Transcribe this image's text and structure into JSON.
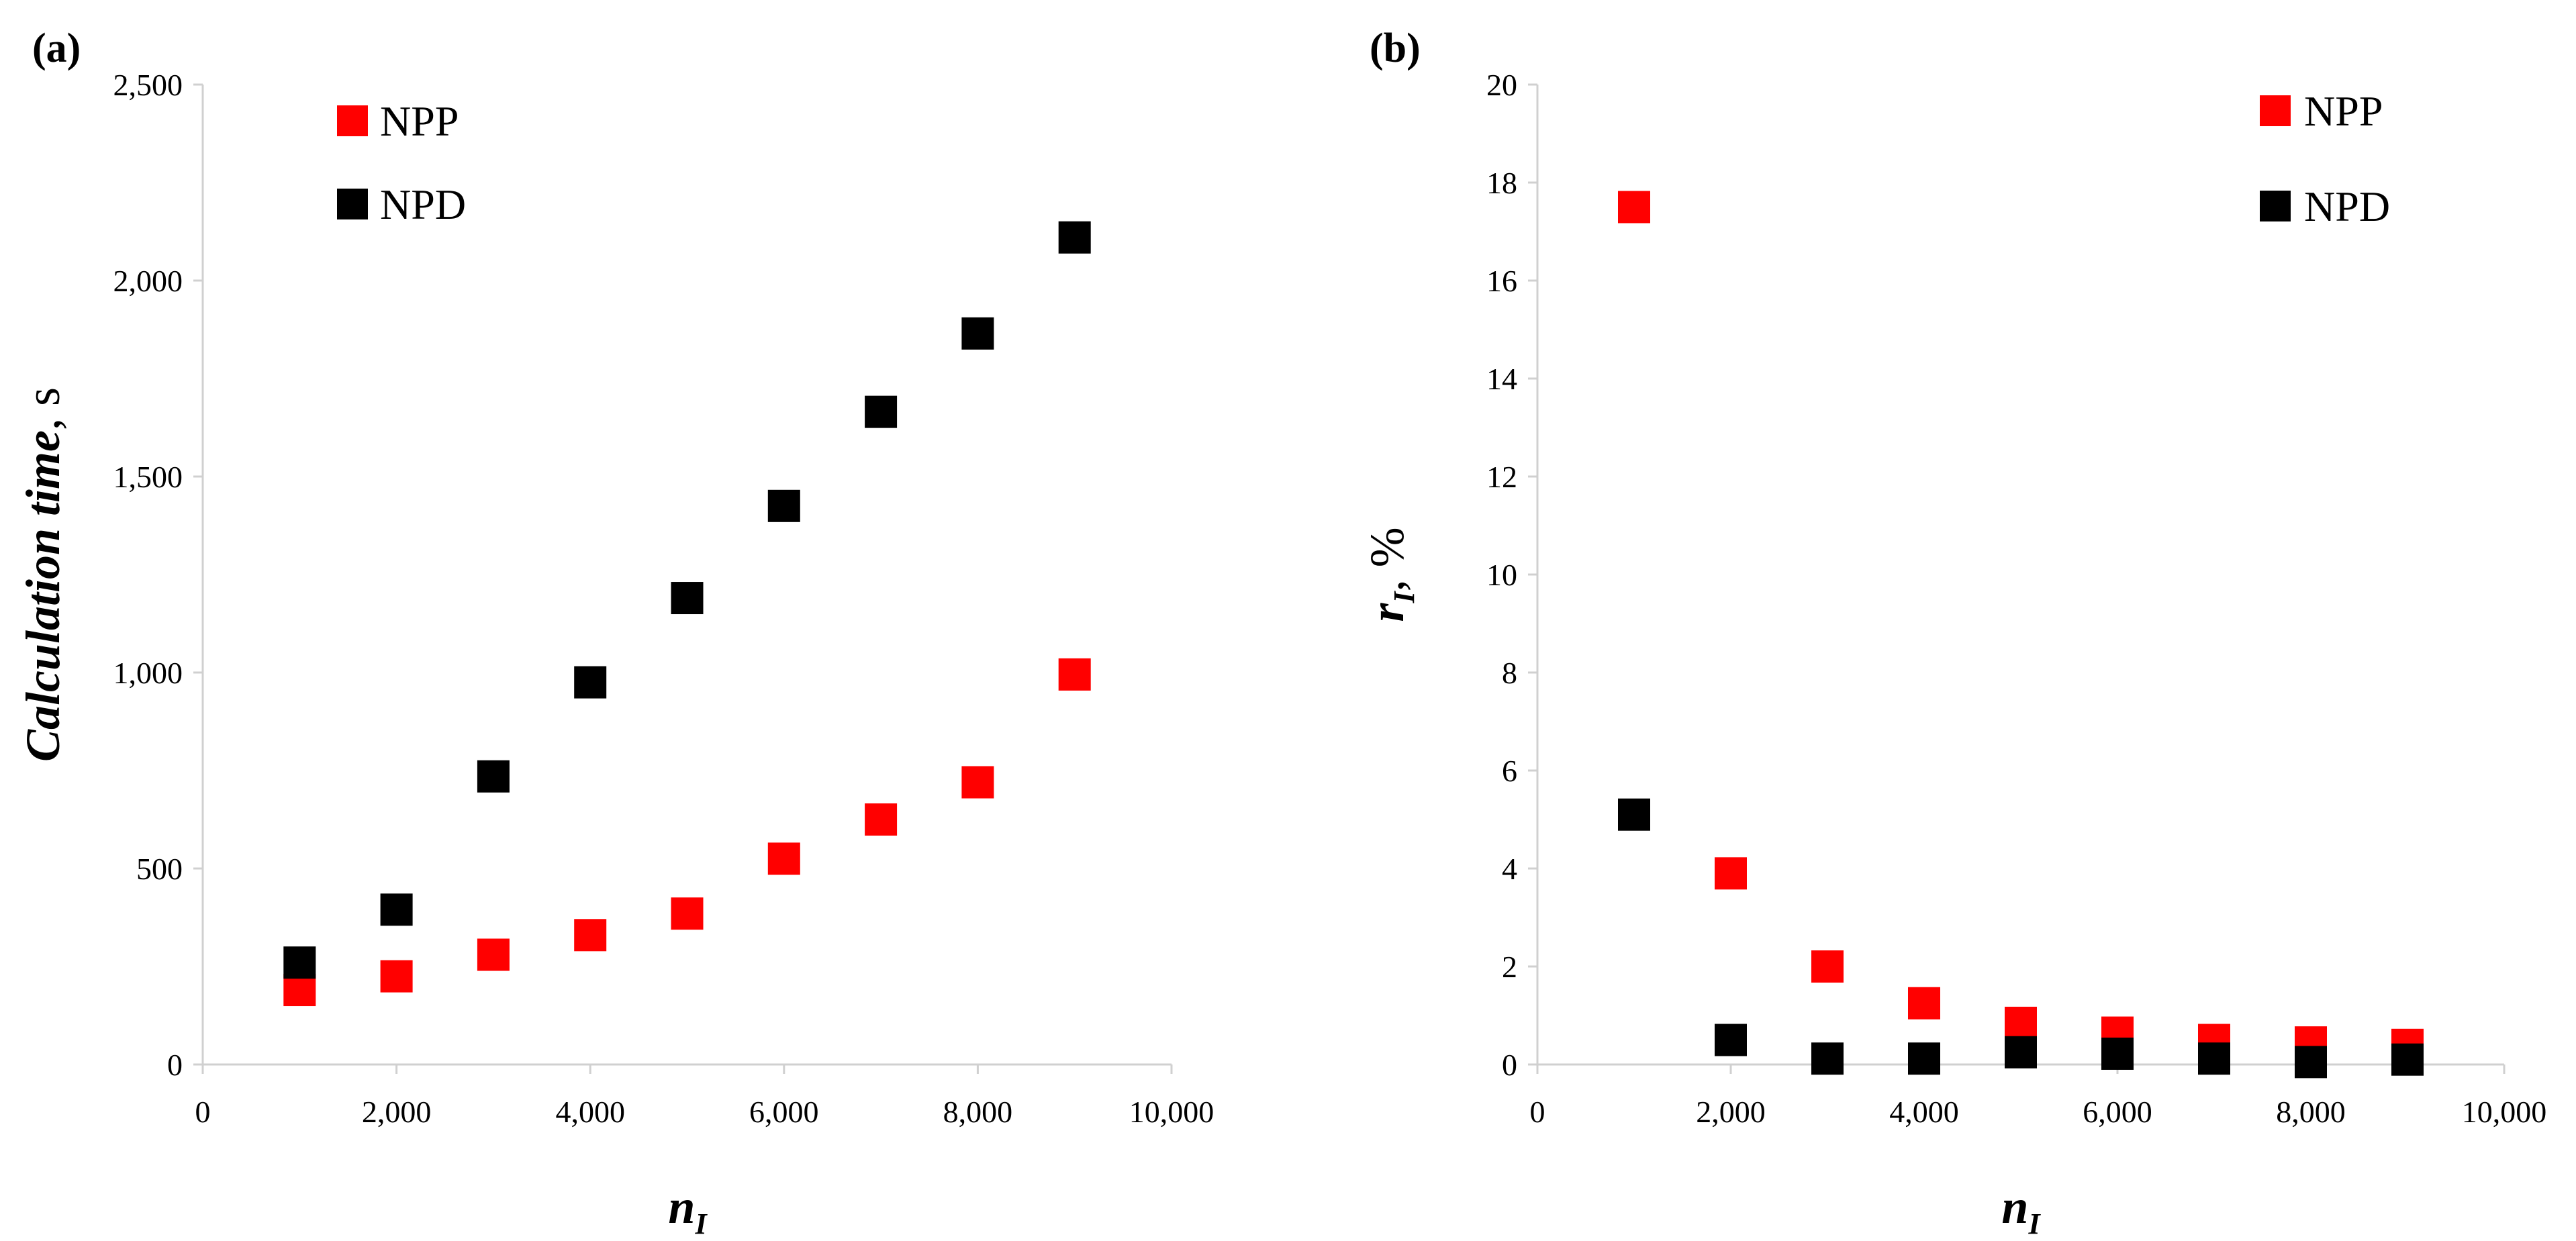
{
  "chart_data": [
    {
      "type": "scatter",
      "panel": "(a)",
      "xlabel_main": "n",
      "xlabel_sub": "I",
      "ylabel_main": "Calculation time",
      "ylabel_unit": ", s",
      "xlim": [
        0,
        10000
      ],
      "ylim": [
        0,
        2500
      ],
      "xticks": [
        0,
        2000,
        4000,
        6000,
        8000,
        10000
      ],
      "xtick_labels": [
        "0",
        "2,000",
        "4,000",
        "6,000",
        "8,000",
        "10,000"
      ],
      "yticks": [
        0,
        500,
        1000,
        1500,
        2000,
        2500
      ],
      "ytick_labels": [
        "0",
        "500",
        "1,000",
        "1,500",
        "2,000",
        "2,500"
      ],
      "grid": false,
      "legend": "top-left",
      "series": [
        {
          "name": "NPP",
          "color": "#ff0000",
          "x": [
            1000,
            2000,
            3000,
            4000,
            5000,
            6000,
            7000,
            8000,
            9000
          ],
          "y": [
            190,
            225,
            280,
            330,
            385,
            525,
            625,
            720,
            995
          ]
        },
        {
          "name": "NPD",
          "color": "#000000",
          "x": [
            1000,
            2000,
            3000,
            4000,
            5000,
            6000,
            7000,
            8000,
            9000
          ],
          "y": [
            260,
            395,
            735,
            975,
            1190,
            1425,
            1665,
            1865,
            2110
          ]
        }
      ]
    },
    {
      "type": "scatter",
      "panel": "(b)",
      "xlabel_main": "n",
      "xlabel_sub": "I",
      "ylabel_main": "r",
      "ylabel_sub": "I",
      "ylabel_unit": ", %",
      "xlim": [
        0,
        10000
      ],
      "ylim": [
        0,
        20
      ],
      "xticks": [
        0,
        2000,
        4000,
        6000,
        8000,
        10000
      ],
      "xtick_labels": [
        "0",
        "2,000",
        "4,000",
        "6,000",
        "8,000",
        "10,000"
      ],
      "yticks": [
        0,
        2,
        4,
        6,
        8,
        10,
        12,
        14,
        16,
        18,
        20
      ],
      "ytick_labels": [
        "0",
        "2",
        "4",
        "6",
        "8",
        "10",
        "12",
        "14",
        "16",
        "18",
        "20"
      ],
      "grid": false,
      "legend": "top-right",
      "series": [
        {
          "name": "NPP",
          "color": "#ff0000",
          "x": [
            1000,
            2000,
            3000,
            4000,
            5000,
            6000,
            7000,
            8000,
            9000
          ],
          "y": [
            17.5,
            3.9,
            2.0,
            1.25,
            0.85,
            0.65,
            0.5,
            0.45,
            0.4
          ]
        },
        {
          "name": "NPD",
          "color": "#000000",
          "x": [
            1000,
            2000,
            3000,
            4000,
            5000,
            6000,
            7000,
            8000,
            9000
          ],
          "y": [
            5.1,
            0.5,
            0.12,
            0.12,
            0.25,
            0.22,
            0.12,
            0.05,
            0.1
          ]
        }
      ]
    }
  ]
}
